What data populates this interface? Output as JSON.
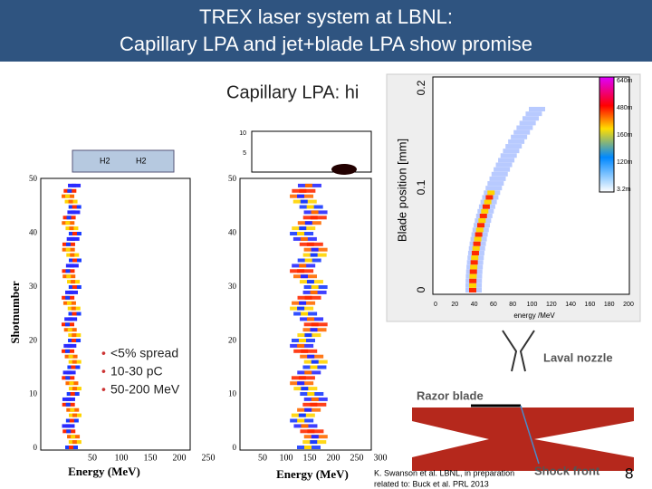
{
  "header": {
    "title_lines": [
      "TREX laser system at LBNL:",
      "Capillary LPA and jet+blade LPA show promise"
    ]
  },
  "subtitle": "Capillary LPA: hi",
  "bullets": [
    "<5% spread",
    "10-30 pC",
    "50-200 MeV"
  ],
  "left_plot": {
    "ylabel": "Shotnumber",
    "xlabel": "Energy (MeV)",
    "yticks": [
      "0",
      "10",
      "20",
      "30",
      "40",
      "50"
    ],
    "xticks": [
      "50",
      "100",
      "150",
      "200",
      "250"
    ],
    "gas_labels": [
      "H2",
      "H2"
    ]
  },
  "middle_plot": {
    "xlabel": "Energy (MeV)",
    "yticks": [
      "0",
      "10",
      "20",
      "30",
      "40",
      "50"
    ],
    "xticks": [
      "50",
      "100",
      "150",
      "200",
      "250",
      "300"
    ],
    "top_ticks": [
      "10",
      "5"
    ]
  },
  "inset": {
    "ylabel": "Blade position [mm]",
    "yticks": [
      "0",
      "0.1",
      "0.2"
    ],
    "xlabel": "energy /MeV",
    "xticks": [
      "0",
      "20",
      "40",
      "60",
      "80",
      "100",
      "120",
      "140",
      "160",
      "180",
      "200"
    ],
    "colorbar_labels": [
      "640m",
      "480m",
      "160m",
      "120m",
      "3.2m"
    ]
  },
  "diagram": {
    "nozzle": "Laval nozzle",
    "blade": "Razor blade",
    "shock": "Shock front"
  },
  "citation": [
    "K. Swanson et al. LBNL, in preparation",
    "related to: Buck et al. PRL 2013"
  ],
  "page_number": "8"
}
